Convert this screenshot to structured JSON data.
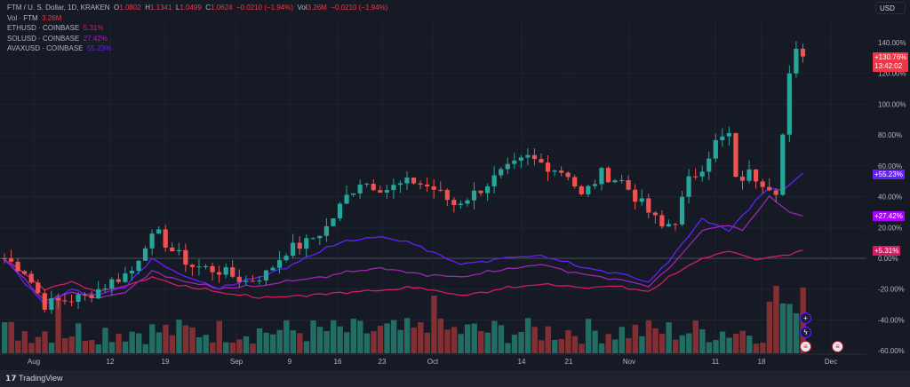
{
  "legend": {
    "main": "FTM / U. S. Dollar, 1D, KRAKEN",
    "o_label": "O",
    "o": "1.0802",
    "h_label": "H",
    "h": "1.1341",
    "l_label": "L",
    "l": "1.0499",
    "c_label": "C",
    "c": "1.0624",
    "change": "−0.0210 (−1.94%)",
    "vol_label": "Vol",
    "vol": "3.26M",
    "vol_change": "−0.0210 (−1.94%)",
    "vol_line": "Vol · FTM",
    "vol_value": "3.26M",
    "compare": [
      {
        "name": "ETHUSD · COINBASE",
        "value": "5.31%",
        "color": "#d81b60"
      },
      {
        "name": "SOLUSD · COINBASE",
        "value": "27.42%",
        "color": "#9c27b0"
      },
      {
        "name": "AVAXUSD · COINBASE",
        "value": "55.23%",
        "color": "#651fff"
      }
    ]
  },
  "currency": "USD",
  "price_tag": {
    "value": "+130.76%",
    "countdown": "13:42:02",
    "color": "#f23645"
  },
  "series_tags": [
    "+55.23%",
    "+27.42%",
    "+5.31%"
  ],
  "brand": "TradingView",
  "chart_data": {
    "type": "candlestick",
    "y_axis": {
      "labels": [
        "140.00%",
        "120.00%",
        "100.00%",
        "80.00%",
        "60.00%",
        "40.00%",
        "20.00%",
        "0.00%",
        "-20.00%",
        "-40.00%",
        "-60.00%"
      ],
      "range": [
        -60,
        140
      ]
    },
    "x_axis": {
      "labels": [
        "Aug",
        "12",
        "19",
        "Sep",
        "9",
        "16",
        "23",
        "Oct",
        "14",
        "21",
        "Nov",
        "11",
        "18",
        "Dec"
      ]
    },
    "ftm_close_keypoints": [
      [
        0,
        0
      ],
      [
        3,
        -8
      ],
      [
        6,
        -30
      ],
      [
        8,
        -28
      ],
      [
        12,
        -25
      ],
      [
        16,
        -15
      ],
      [
        19,
        -8
      ],
      [
        21,
        10
      ],
      [
        23,
        15
      ],
      [
        25,
        5
      ],
      [
        28,
        -5
      ],
      [
        32,
        -8
      ],
      [
        36,
        -15
      ],
      [
        39,
        -10
      ],
      [
        42,
        5
      ],
      [
        45,
        10
      ],
      [
        48,
        20
      ],
      [
        51,
        40
      ],
      [
        53,
        50
      ],
      [
        57,
        45
      ],
      [
        61,
        50
      ],
      [
        64,
        45
      ],
      [
        67,
        35
      ],
      [
        70,
        42
      ],
      [
        74,
        55
      ],
      [
        78,
        65
      ],
      [
        81,
        60
      ],
      [
        84,
        55
      ],
      [
        86,
        40
      ],
      [
        89,
        55
      ],
      [
        92,
        50
      ],
      [
        95,
        35
      ],
      [
        98,
        20
      ],
      [
        100,
        25
      ],
      [
        102,
        50
      ],
      [
        104,
        60
      ],
      [
        106,
        75
      ],
      [
        108,
        80
      ],
      [
        109,
        50
      ],
      [
        111,
        55
      ],
      [
        113,
        50
      ],
      [
        115,
        45
      ],
      [
        116,
        80
      ],
      [
        117,
        120
      ],
      [
        118,
        136
      ],
      [
        119,
        131
      ]
    ],
    "eth_keypoints": [
      [
        0,
        0
      ],
      [
        6,
        -20
      ],
      [
        10,
        -15
      ],
      [
        14,
        -22
      ],
      [
        18,
        -18
      ],
      [
        22,
        -12
      ],
      [
        26,
        -18
      ],
      [
        32,
        -22
      ],
      [
        38,
        -26
      ],
      [
        44,
        -24
      ],
      [
        50,
        -22
      ],
      [
        56,
        -21
      ],
      [
        62,
        -19
      ],
      [
        68,
        -24
      ],
      [
        74,
        -20
      ],
      [
        80,
        -17
      ],
      [
        86,
        -19
      ],
      [
        92,
        -18
      ],
      [
        96,
        -22
      ],
      [
        100,
        -10
      ],
      [
        104,
        0
      ],
      [
        108,
        5
      ],
      [
        112,
        -1
      ],
      [
        116,
        2
      ],
      [
        119,
        5.31
      ]
    ],
    "sol_keypoints": [
      [
        0,
        0
      ],
      [
        6,
        -28
      ],
      [
        10,
        -22
      ],
      [
        14,
        -26
      ],
      [
        18,
        -22
      ],
      [
        22,
        -8
      ],
      [
        26,
        -14
      ],
      [
        32,
        -20
      ],
      [
        38,
        -18
      ],
      [
        44,
        -14
      ],
      [
        50,
        -10
      ],
      [
        56,
        -6
      ],
      [
        62,
        -10
      ],
      [
        68,
        -12
      ],
      [
        74,
        -8
      ],
      [
        80,
        -4
      ],
      [
        86,
        -10
      ],
      [
        92,
        -14
      ],
      [
        96,
        -18
      ],
      [
        100,
        -2
      ],
      [
        104,
        18
      ],
      [
        108,
        22
      ],
      [
        110,
        18
      ],
      [
        114,
        40
      ],
      [
        117,
        30
      ],
      [
        119,
        27.42
      ]
    ],
    "avax_keypoints": [
      [
        0,
        0
      ],
      [
        6,
        -30
      ],
      [
        10,
        -20
      ],
      [
        14,
        -24
      ],
      [
        18,
        -18
      ],
      [
        22,
        0
      ],
      [
        26,
        -10
      ],
      [
        32,
        -20
      ],
      [
        38,
        -12
      ],
      [
        44,
        -2
      ],
      [
        50,
        10
      ],
      [
        56,
        14
      ],
      [
        62,
        8
      ],
      [
        68,
        -4
      ],
      [
        74,
        0
      ],
      [
        80,
        2
      ],
      [
        86,
        -6
      ],
      [
        92,
        -10
      ],
      [
        96,
        -16
      ],
      [
        100,
        4
      ],
      [
        104,
        26
      ],
      [
        108,
        18
      ],
      [
        112,
        38
      ],
      [
        114,
        46
      ],
      [
        116,
        44
      ],
      [
        119,
        55.23
      ]
    ]
  }
}
